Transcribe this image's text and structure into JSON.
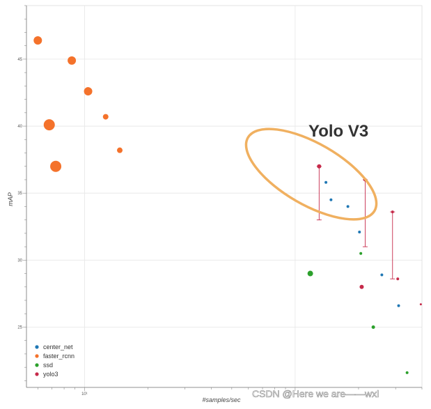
{
  "chart_data": {
    "type": "scatter",
    "xlabel": "#samples/sec",
    "ylabel": "mAP",
    "x_scale": "log",
    "xlim": [
      5.3,
      400
    ],
    "ylim": [
      20.5,
      49
    ],
    "x_ticks": [
      {
        "value": 10,
        "label": "10¹"
      }
    ],
    "y_ticks": [
      25,
      30,
      35,
      40,
      45
    ],
    "grid": true,
    "legend_position": "bottom-left",
    "series": [
      {
        "name": "center_net",
        "color": "#1f77b4",
        "points": [
          {
            "x": 140,
            "y": 35.8,
            "size": 2
          },
          {
            "x": 148,
            "y": 34.5,
            "size": 2
          },
          {
            "x": 178,
            "y": 34.0,
            "size": 2
          },
          {
            "x": 202,
            "y": 32.1,
            "size": 2
          },
          {
            "x": 258,
            "y": 28.9,
            "size": 2
          },
          {
            "x": 310,
            "y": 26.6,
            "size": 2
          }
        ]
      },
      {
        "name": "faster_rcnn",
        "color": "#f4722b",
        "points": [
          {
            "x": 6.0,
            "y": 46.4,
            "size": 6
          },
          {
            "x": 6.8,
            "y": 40.1,
            "size": 8
          },
          {
            "x": 7.3,
            "y": 37.0,
            "size": 8
          },
          {
            "x": 8.7,
            "y": 44.9,
            "size": 6
          },
          {
            "x": 10.4,
            "y": 42.6,
            "size": 6
          },
          {
            "x": 12.6,
            "y": 40.7,
            "size": 4
          },
          {
            "x": 14.7,
            "y": 38.2,
            "size": 4
          }
        ]
      },
      {
        "name": "ssd",
        "color": "#2ca02c",
        "points": [
          {
            "x": 118,
            "y": 29.0,
            "size": 4
          },
          {
            "x": 205,
            "y": 30.5,
            "size": 2
          },
          {
            "x": 235,
            "y": 25.0,
            "size": 2.5
          },
          {
            "x": 340,
            "y": 21.6,
            "size": 2
          }
        ]
      },
      {
        "name": "yolo3",
        "color": "#c62a4a",
        "points": [
          {
            "x": 130,
            "y": 37.0,
            "size": 3,
            "error": [
              33.0,
              37.0
            ]
          },
          {
            "x": 207,
            "y": 28.0,
            "size": 3
          },
          {
            "x": 215,
            "y": 36.0,
            "size": 2.5,
            "error": [
              31.0,
              36.0
            ]
          },
          {
            "x": 290,
            "y": 33.6,
            "size": 2,
            "error": [
              28.6,
              33.6
            ]
          },
          {
            "x": 307,
            "y": 28.6,
            "size": 2
          },
          {
            "x": 395,
            "y": 26.7,
            "size": 1.5
          }
        ]
      }
    ],
    "annotations": [
      {
        "text": "Yolo V3",
        "shape": "ellipse",
        "color": "#f0b060"
      }
    ]
  },
  "watermark": "CSDN @Here we are——wxl"
}
